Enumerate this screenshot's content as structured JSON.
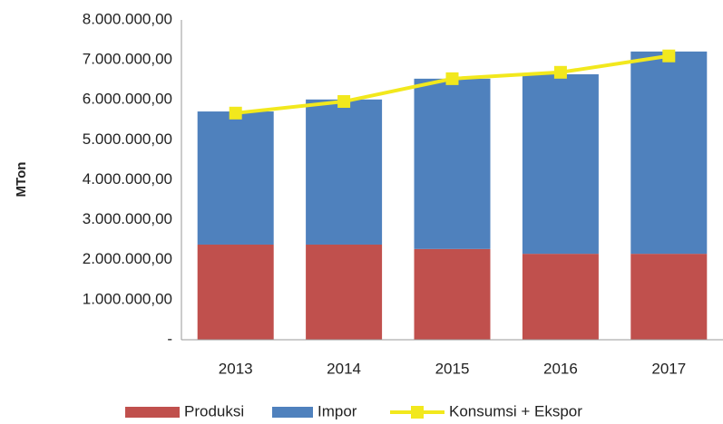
{
  "chart_data": {
    "type": "stacked_bar_line",
    "y_label": "MTon",
    "categories": [
      "2013",
      "2014",
      "2015",
      "2016",
      "2017"
    ],
    "series": [
      {
        "name": "Produksi",
        "color": "#c0504d",
        "kind": "bar",
        "values": [
          2380000,
          2380000,
          2270000,
          2150000,
          2150000
        ]
      },
      {
        "name": "Impor",
        "color": "#4f81bd",
        "kind": "bar",
        "values": [
          3330000,
          3630000,
          4260000,
          4490000,
          5060000
        ]
      },
      {
        "name": "Konsumsi + Ekspor",
        "color": "#f2e81d",
        "kind": "line",
        "values": [
          5670000,
          5960000,
          6530000,
          6690000,
          7100000
        ]
      }
    ],
    "ylim": [
      0,
      8000000
    ],
    "yticks": [
      {
        "value": 0,
        "label": "-"
      },
      {
        "value": 1000000,
        "label": "1.000.000,00"
      },
      {
        "value": 2000000,
        "label": "2.000.000,00"
      },
      {
        "value": 3000000,
        "label": "3.000.000,00"
      },
      {
        "value": 4000000,
        "label": "4.000.000,00"
      },
      {
        "value": 5000000,
        "label": "5.000.000,00"
      },
      {
        "value": 6000000,
        "label": "6.000.000,00"
      },
      {
        "value": 7000000,
        "label": "7.000.000,00"
      },
      {
        "value": 8000000,
        "label": "8.000.000,00"
      }
    ],
    "grid": false,
    "legend": "bottom"
  }
}
